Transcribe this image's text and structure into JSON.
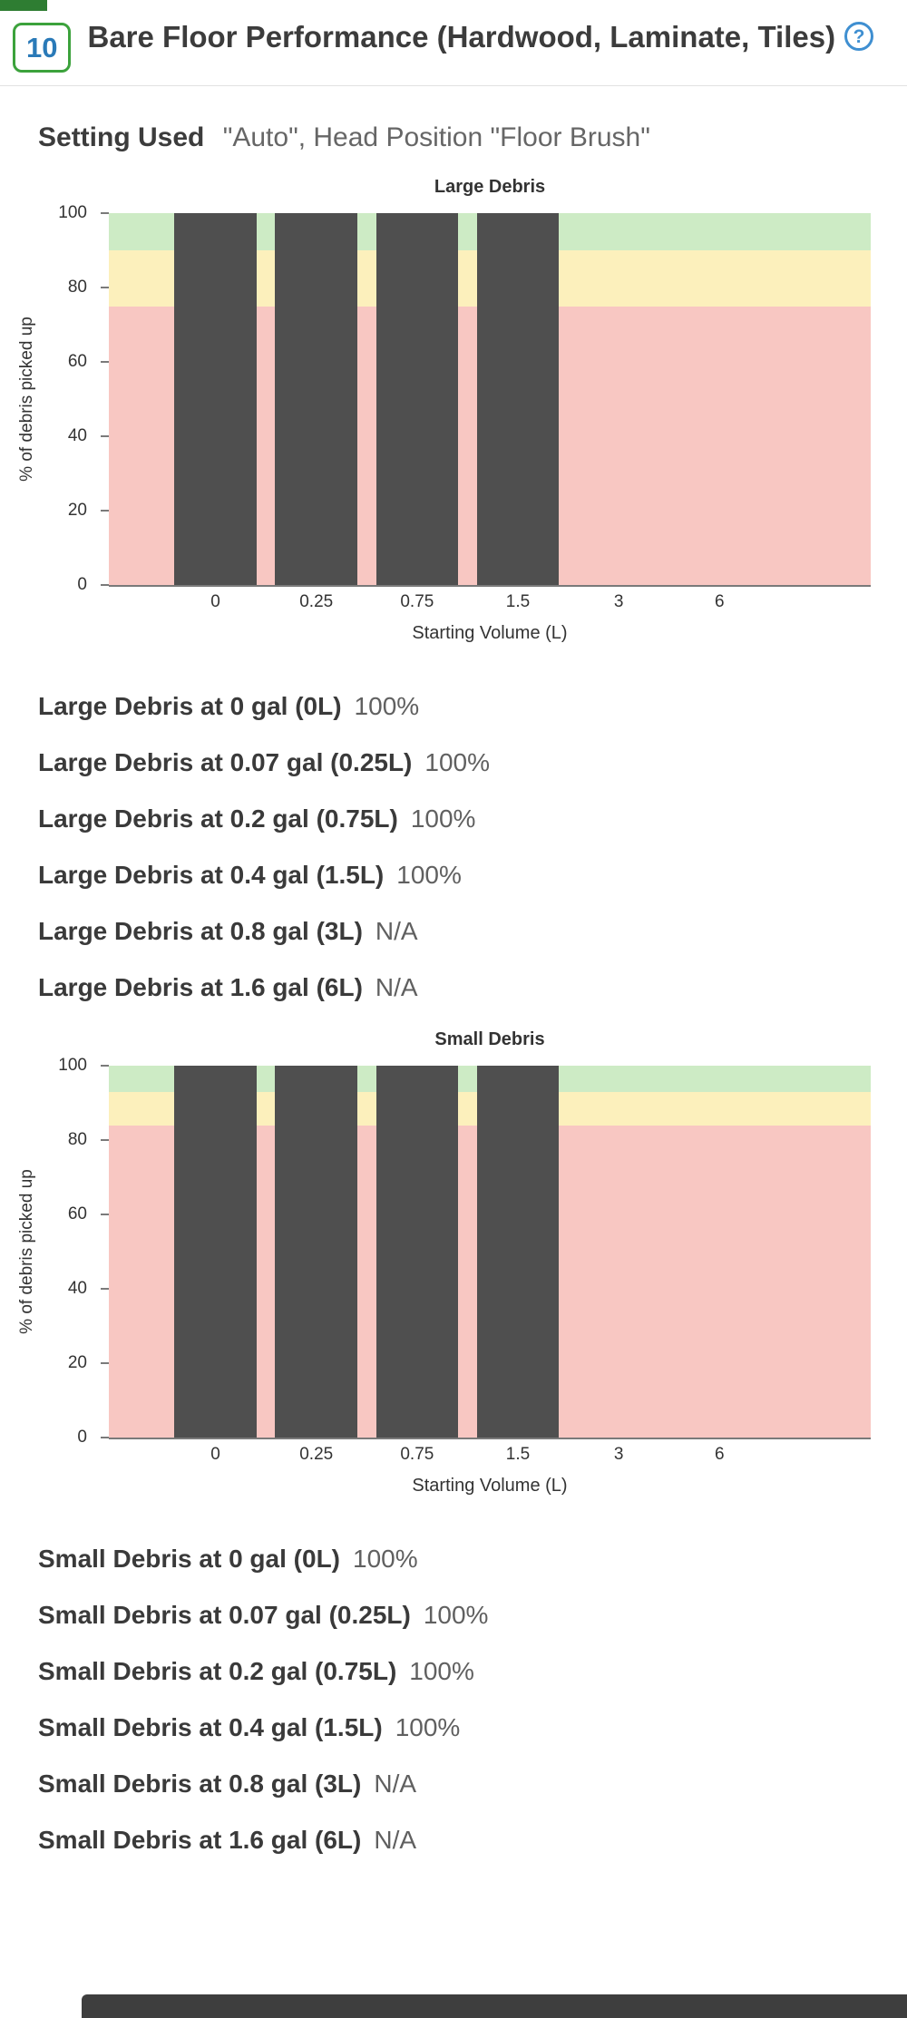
{
  "header": {
    "badge": "10",
    "title": "Bare Floor Performance (Hardwood, Laminate, Tiles)",
    "help_icon": "?"
  },
  "setting": {
    "label": "Setting Used",
    "value": "\"Auto\", Head Position \"Floor Brush\""
  },
  "chart_data": [
    {
      "type": "bar",
      "title": "Large Debris",
      "xlabel": "Starting Volume (L)",
      "ylabel": "% of debris picked up",
      "categories": [
        "0",
        "0.25",
        "0.75",
        "1.5",
        "3",
        "6"
      ],
      "values": [
        100,
        100,
        100,
        100,
        null,
        null
      ],
      "ylim": [
        0,
        100
      ],
      "yticks": [
        0,
        20,
        40,
        60,
        80,
        100
      ],
      "grid": false,
      "legend": "none",
      "bar_color": "#4f4f4f",
      "zones": [
        {
          "from": 0,
          "to": 75,
          "color": "#f8c7c2"
        },
        {
          "from": 75,
          "to": 90,
          "color": "#fcf0bc"
        },
        {
          "from": 90,
          "to": 100,
          "color": "#cdebc5"
        }
      ]
    },
    {
      "type": "bar",
      "title": "Small Debris",
      "xlabel": "Starting Volume (L)",
      "ylabel": "% of debris picked up",
      "categories": [
        "0",
        "0.25",
        "0.75",
        "1.5",
        "3",
        "6"
      ],
      "values": [
        100,
        100,
        100,
        100,
        null,
        null
      ],
      "ylim": [
        0,
        100
      ],
      "yticks": [
        0,
        20,
        40,
        60,
        80,
        100
      ],
      "grid": false,
      "legend": "none",
      "bar_color": "#4f4f4f",
      "zones": [
        {
          "from": 0,
          "to": 84,
          "color": "#f8c7c2"
        },
        {
          "from": 84,
          "to": 93,
          "color": "#fcf0bc"
        },
        {
          "from": 93,
          "to": 100,
          "color": "#cdebc5"
        }
      ]
    }
  ],
  "large_debris_stats": {
    "rows": [
      {
        "label": "Large Debris at 0 gal (0L)",
        "value": "100%"
      },
      {
        "label": "Large Debris at 0.07 gal (0.25L)",
        "value": "100%"
      },
      {
        "label": "Large Debris at 0.2 gal (0.75L)",
        "value": "100%"
      },
      {
        "label": "Large Debris at 0.4 gal (1.5L)",
        "value": "100%"
      },
      {
        "label": "Large Debris at 0.8 gal (3L)",
        "value": "N/A"
      },
      {
        "label": "Large Debris at 1.6 gal (6L)",
        "value": "N/A"
      }
    ]
  },
  "small_debris_stats": {
    "rows": [
      {
        "label": "Small Debris at 0 gal (0L)",
        "value": "100%"
      },
      {
        "label": "Small Debris at 0.07 gal (0.25L)",
        "value": "100%"
      },
      {
        "label": "Small Debris at 0.2 gal (0.75L)",
        "value": "100%"
      },
      {
        "label": "Small Debris at 0.4 gal (1.5L)",
        "value": "100%"
      },
      {
        "label": "Small Debris at 0.8 gal (3L)",
        "value": "N/A"
      },
      {
        "label": "Small Debris at 1.6 gal (6L)",
        "value": "N/A"
      }
    ]
  }
}
